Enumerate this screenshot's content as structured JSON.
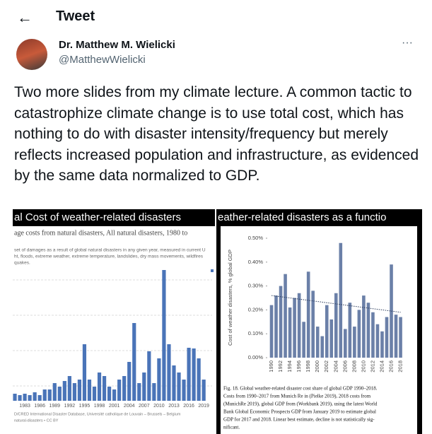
{
  "header": {
    "title": "Tweet"
  },
  "author": {
    "name": "Dr. Matthew M. Wielicki",
    "handle": "@MatthewWielicki"
  },
  "tweet": {
    "text": "Two more slides from my climate lecture. A common tactic to catastrophize climate change is to use total cost, which has nothing to do with disaster intensity/frequency but merely reflects increased population and infrastructure, as evidenced by the same data normalized to GDP."
  },
  "images": [
    {
      "chart_data": {
        "type": "bar",
        "title": "al Cost of weather-related disasters",
        "subtitle": "age costs from natural disasters, All natural disasters, 1980 to",
        "description": [
          "set of damages as a result of global natural disasters in any given year, measured in current U",
          "ht, floods, extreme weather, extreme temperature, landslides, dry mass movements, wildfires",
          "quakes."
        ],
        "source": [
          "D/CRED International Disaster Database, Université catholique de Louvain – Brussels – Belgium",
          "natural-disasters • CC BY"
        ],
        "color": "#4a74b8",
        "categories": [
          null,
          null,
          null,
          "1983",
          null,
          null,
          "1986",
          null,
          null,
          "1989",
          null,
          null,
          "1992",
          null,
          null,
          "1995",
          null,
          null,
          "1998",
          null,
          null,
          "2001",
          null,
          null,
          "2004",
          null,
          null,
          "2007",
          null,
          null,
          "2010",
          null,
          null,
          "2013",
          null,
          null,
          "2016",
          null,
          null,
          "2019"
        ],
        "values": [
          16,
          20,
          16,
          20,
          16,
          24,
          16,
          32,
          32,
          50,
          40,
          56,
          70,
          50,
          60,
          160,
          60,
          40,
          80,
          70,
          40,
          32,
          60,
          70,
          110,
          220,
          50,
          80,
          140,
          50,
          120,
          370,
          160,
          100,
          80,
          60,
          150,
          148,
          120,
          60
        ]
      }
    },
    {
      "chart_data": {
        "type": "bar",
        "title": "eather-related disasters as a functio",
        "y_label": "Cost of weather disasters, % global GDP",
        "color": "#6b80a8",
        "categories": [
          "1990",
          null,
          "1992",
          null,
          "1994",
          null,
          "1996",
          null,
          "1998",
          null,
          "2000",
          null,
          "2002",
          null,
          "2004",
          null,
          "2006",
          null,
          "2008",
          null,
          "2010",
          null,
          "2012",
          null,
          "2014",
          null,
          "2016",
          null,
          "2018"
        ],
        "values": [
          0.22,
          0.26,
          0.3,
          0.35,
          0.21,
          0.25,
          0.27,
          0.15,
          0.36,
          0.28,
          0.13,
          0.09,
          0.22,
          0.16,
          0.27,
          0.48,
          0.12,
          0.23,
          0.13,
          0.2,
          0.26,
          0.23,
          0.19,
          0.14,
          0.11,
          0.17,
          0.39,
          0.18,
          0.17
        ],
        "trendline": [
          0.26,
          0.19
        ],
        "ylim": [
          0,
          0.5
        ],
        "yticks": [
          {
            "value": 0,
            "label": "0.00%"
          },
          {
            "value": 0.1,
            "label": "0.10%"
          },
          {
            "value": 0.2,
            "label": "0.20%"
          },
          {
            "value": 0.3,
            "label": "0.30%"
          },
          {
            "value": 0.4,
            "label": "0.40%"
          },
          {
            "value": 0.5,
            "label": "0.50%"
          }
        ],
        "caption": [
          "Fig. 18. Global weather-related disaster cost share of global GDP 1990–2018.",
          "Costs from 1990–2017 from Munich Re in (Pielke 2019), 2018 costs from",
          "(MunichRe 2019), global GDP from (Workbank 2019), using the latest World",
          "Bank Global Economic Prospects GDP from January 2019 to estimate global",
          "GDP for 2017 and 2018. Linear best estimate, decline is not statistically sig-",
          "nificant."
        ]
      }
    }
  ]
}
